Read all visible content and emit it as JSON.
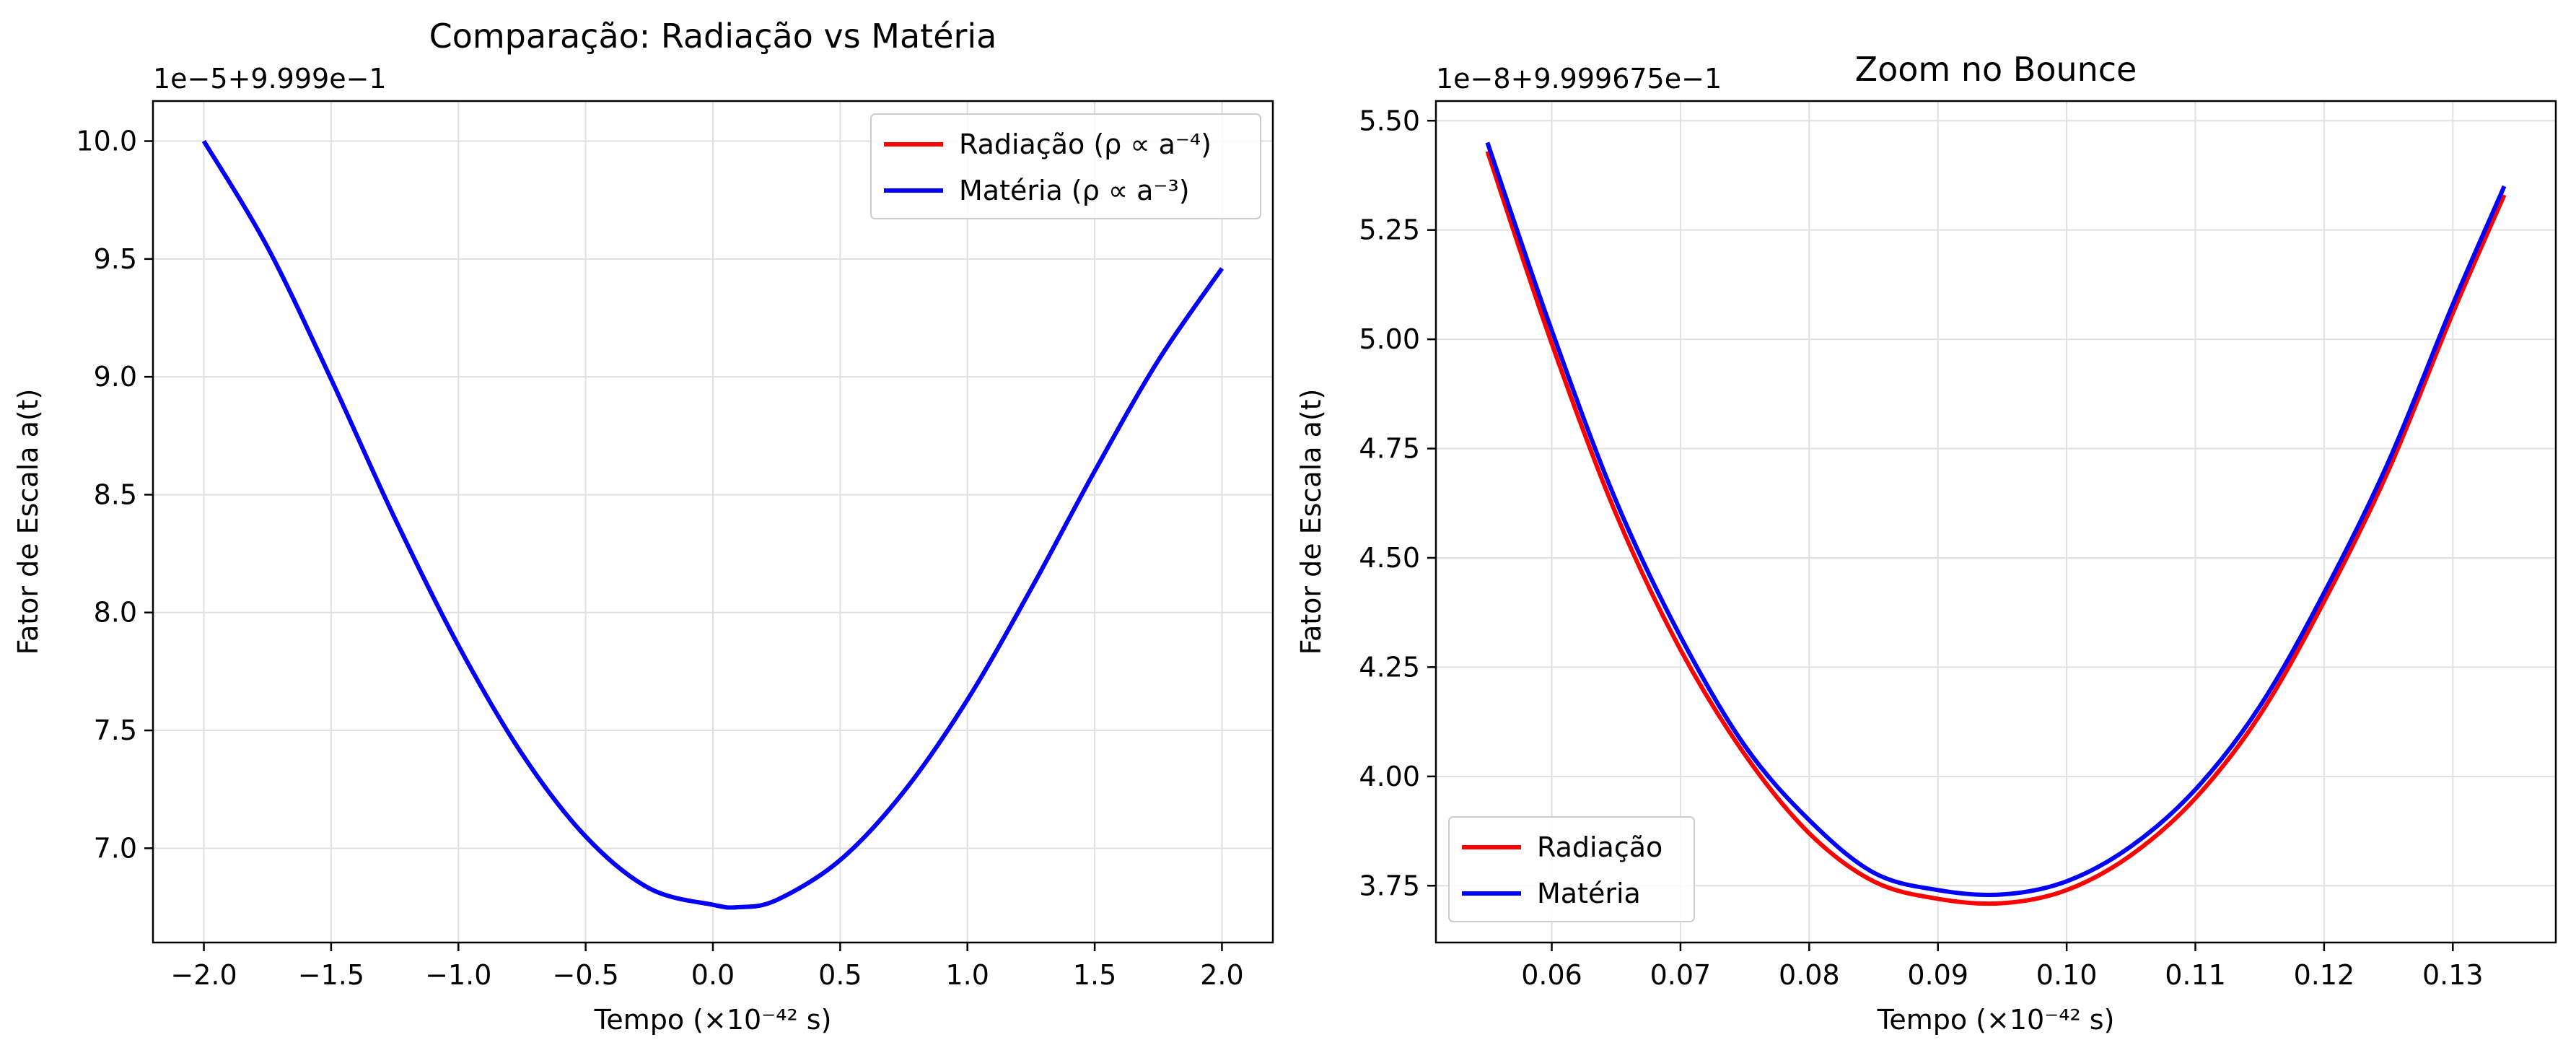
{
  "chart_data": [
    {
      "type": "line",
      "title": "Comparação: Radiação vs Matéria",
      "xlabel": "Tempo (×10⁻⁴² s)",
      "ylabel": "Fator de Escala a(t)",
      "offset_label": "1e−5+9.999e−1",
      "xlim": [
        -2.2,
        2.2
      ],
      "ylim": [
        6.6,
        10.17
      ],
      "x_ticks": [
        -2.0,
        -1.5,
        -1.0,
        -0.5,
        0.0,
        0.5,
        1.0,
        1.5,
        2.0
      ],
      "x_tick_labels": [
        "−2.0",
        "−1.5",
        "−1.0",
        "−0.5",
        "0.0",
        "0.5",
        "1.0",
        "1.5",
        "2.0"
      ],
      "y_ticks": [
        7.0,
        7.5,
        8.0,
        8.5,
        9.0,
        9.5,
        10.0
      ],
      "y_tick_labels": [
        "7.0",
        "7.5",
        "8.0",
        "8.5",
        "9.0",
        "9.5",
        "10.0"
      ],
      "grid": true,
      "legend_position": "top-right",
      "series": [
        {
          "name": "Radiação (ρ ∝ a⁻⁴)",
          "color": "#ff0000",
          "x": [
            -2.0,
            -1.75,
            -1.5,
            -1.25,
            -1.0,
            -0.75,
            -0.5,
            -0.25,
            0.0,
            0.1,
            0.25,
            0.5,
            0.75,
            1.0,
            1.25,
            1.5,
            1.75,
            2.0
          ],
          "y": [
            10.0,
            9.55,
            8.99,
            8.4,
            7.86,
            7.4,
            7.05,
            6.83,
            6.76,
            6.75,
            6.78,
            6.95,
            7.24,
            7.63,
            8.1,
            8.6,
            9.07,
            9.46
          ]
        },
        {
          "name": "Matéria (ρ ∝ a⁻³)",
          "color": "#0000ff",
          "x": [
            -2.0,
            -1.75,
            -1.5,
            -1.25,
            -1.0,
            -0.75,
            -0.5,
            -0.25,
            0.0,
            0.1,
            0.25,
            0.5,
            0.75,
            1.0,
            1.25,
            1.5,
            1.75,
            2.0
          ],
          "y": [
            10.0,
            9.55,
            8.99,
            8.4,
            7.86,
            7.4,
            7.05,
            6.83,
            6.76,
            6.75,
            6.78,
            6.95,
            7.24,
            7.63,
            8.1,
            8.6,
            9.07,
            9.46
          ]
        }
      ]
    },
    {
      "type": "line",
      "title": "Zoom no Bounce",
      "xlabel": "Tempo (×10⁻⁴² s)",
      "ylabel": "Fator de Escala a(t)",
      "offset_label": "1e−8+9.999675e−1",
      "xlim": [
        0.051,
        0.138
      ],
      "ylim": [
        3.62,
        5.545
      ],
      "x_ticks": [
        0.06,
        0.07,
        0.08,
        0.09,
        0.1,
        0.11,
        0.12,
        0.13
      ],
      "x_tick_labels": [
        "0.06",
        "0.07",
        "0.08",
        "0.09",
        "0.10",
        "0.11",
        "0.12",
        "0.13"
      ],
      "y_ticks": [
        3.75,
        4.0,
        4.25,
        4.5,
        4.75,
        5.0,
        5.25,
        5.5
      ],
      "y_tick_labels": [
        "3.75",
        "4.00",
        "4.25",
        "4.50",
        "4.75",
        "5.00",
        "5.25",
        "5.50"
      ],
      "grid": true,
      "legend_position": "bottom-left",
      "series": [
        {
          "name": "Radiação",
          "color": "#ff0000",
          "x": [
            0.055,
            0.06,
            0.065,
            0.07,
            0.075,
            0.08,
            0.085,
            0.09,
            0.095,
            0.1,
            0.105,
            0.11,
            0.115,
            0.12,
            0.125,
            0.13,
            0.134
          ],
          "y": [
            5.43,
            4.99,
            4.6,
            4.29,
            4.05,
            3.87,
            3.76,
            3.72,
            3.71,
            3.74,
            3.82,
            3.95,
            4.14,
            4.4,
            4.7,
            5.06,
            5.33
          ]
        },
        {
          "name": "Matéria",
          "color": "#0000ff",
          "x": [
            0.055,
            0.06,
            0.065,
            0.07,
            0.075,
            0.08,
            0.085,
            0.09,
            0.095,
            0.1,
            0.105,
            0.11,
            0.115,
            0.12,
            0.125,
            0.13,
            0.134
          ],
          "y": [
            5.45,
            5.02,
            4.63,
            4.32,
            4.07,
            3.9,
            3.78,
            3.74,
            3.73,
            3.76,
            3.84,
            3.97,
            4.16,
            4.42,
            4.72,
            5.08,
            5.35
          ]
        }
      ]
    }
  ]
}
